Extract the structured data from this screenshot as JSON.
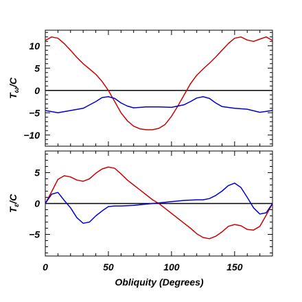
{
  "chart_data": [
    {
      "type": "line",
      "ylabel_main": "T",
      "ylabel_sub": "ω",
      "ylabel_suffix": "/C",
      "xlim": [
        0,
        180
      ],
      "ylim": [
        -12.5,
        13.5
      ],
      "xticks": [
        0,
        50,
        100,
        150
      ],
      "yticks": [
        -10,
        -5,
        0,
        5,
        10
      ],
      "ytick_labels": [
        "−10",
        "−5",
        "0",
        "5",
        "10"
      ],
      "zero_line": true,
      "series": [
        {
          "color": "#cc0000",
          "x": [
            0,
            5,
            10,
            15,
            20,
            25,
            30,
            35,
            40,
            45,
            50,
            55,
            60,
            65,
            70,
            75,
            80,
            85,
            90,
            95,
            100,
            105,
            110,
            115,
            120,
            125,
            130,
            135,
            140,
            145,
            150,
            155,
            160,
            165,
            170,
            175,
            180
          ],
          "y": [
            11.2,
            12.0,
            11.7,
            10.5,
            9.0,
            7.4,
            6.0,
            4.8,
            3.6,
            2.0,
            0.0,
            -2.5,
            -5.0,
            -6.8,
            -8.0,
            -8.6,
            -8.8,
            -8.8,
            -8.5,
            -7.6,
            -5.8,
            -3.5,
            -1.0,
            1.5,
            3.4,
            4.8,
            6.1,
            7.5,
            9.0,
            10.5,
            11.7,
            12.0,
            11.3,
            11.0,
            11.5,
            12.0,
            11.2
          ]
        },
        {
          "color": "#0000cc",
          "x": [
            0,
            10,
            20,
            30,
            40,
            45,
            50,
            55,
            60,
            65,
            70,
            80,
            90,
            100,
            110,
            115,
            120,
            125,
            130,
            135,
            140,
            150,
            160,
            170,
            180
          ],
          "y": [
            -4.5,
            -5.0,
            -4.5,
            -4.0,
            -2.5,
            -1.6,
            -1.4,
            -1.8,
            -2.8,
            -3.5,
            -3.9,
            -3.7,
            -3.7,
            -3.8,
            -3.2,
            -2.5,
            -1.7,
            -1.4,
            -1.8,
            -2.8,
            -3.6,
            -4.0,
            -4.2,
            -4.9,
            -4.5
          ]
        }
      ]
    },
    {
      "type": "line",
      "xlabel": "Obliquity (Degrees)",
      "ylabel_main": "T",
      "ylabel_sub": "ε",
      "ylabel_suffix": "/C",
      "xlim": [
        0,
        180
      ],
      "ylim": [
        -8.5,
        8.5
      ],
      "xticks": [
        0,
        50,
        100,
        150
      ],
      "xtick_labels": [
        "0",
        "50",
        "100",
        "150"
      ],
      "yticks": [
        -5,
        0,
        5
      ],
      "ytick_labels": [
        "−5",
        "0",
        "5"
      ],
      "zero_line": true,
      "series": [
        {
          "color": "#cc0000",
          "x": [
            0,
            5,
            10,
            15,
            20,
            25,
            30,
            35,
            40,
            45,
            50,
            55,
            60,
            65,
            70,
            75,
            80,
            85,
            90,
            95,
            100,
            105,
            110,
            115,
            120,
            125,
            130,
            135,
            140,
            145,
            150,
            155,
            160,
            165,
            170,
            175,
            180
          ],
          "y": [
            0.0,
            1.9,
            3.9,
            4.5,
            4.3,
            3.8,
            3.6,
            4.0,
            4.9,
            5.6,
            5.9,
            5.7,
            4.8,
            3.8,
            3.0,
            2.2,
            1.4,
            0.6,
            0.0,
            -0.8,
            -1.6,
            -2.4,
            -3.2,
            -4.0,
            -4.9,
            -5.5,
            -5.7,
            -5.3,
            -4.6,
            -3.7,
            -3.4,
            -3.6,
            -4.2,
            -4.3,
            -3.7,
            -1.9,
            0.0
          ]
        },
        {
          "color": "#0000cc",
          "x": [
            0,
            5,
            10,
            15,
            20,
            25,
            30,
            35,
            40,
            45,
            50,
            55,
            60,
            70,
            80,
            90,
            100,
            110,
            120,
            125,
            130,
            135,
            140,
            145,
            150,
            155,
            160,
            165,
            170,
            175,
            180
          ],
          "y": [
            0.0,
            1.5,
            1.8,
            0.5,
            -0.7,
            -2.3,
            -3.2,
            -3.0,
            -2.0,
            -1.2,
            -0.5,
            -0.4,
            -0.4,
            -0.3,
            -0.1,
            0.1,
            0.3,
            0.5,
            0.6,
            0.6,
            0.8,
            1.3,
            2.0,
            2.9,
            3.3,
            2.6,
            1.0,
            -0.7,
            -1.7,
            -1.5,
            0.0
          ]
        }
      ]
    }
  ]
}
